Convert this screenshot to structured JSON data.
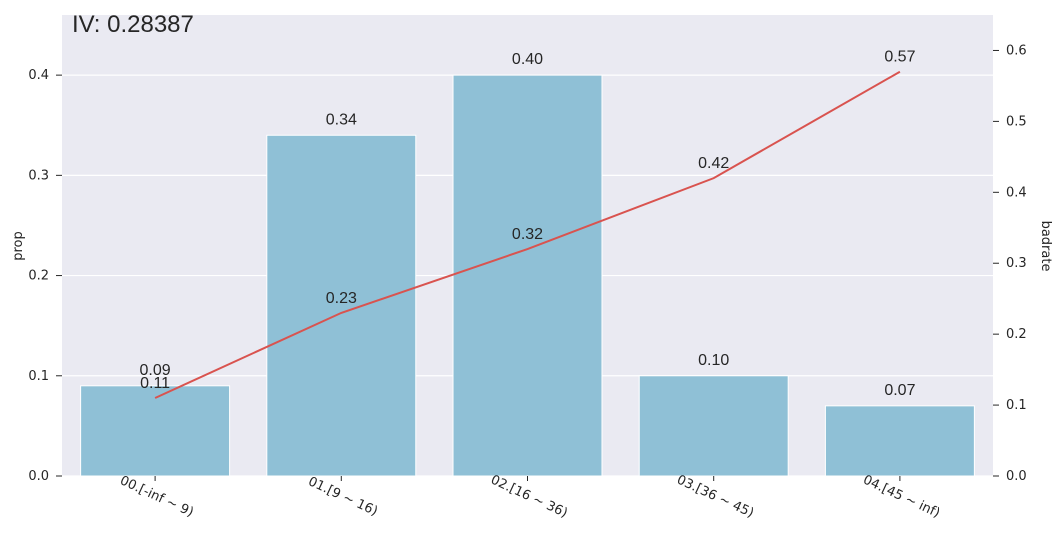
{
  "chart_data": {
    "type": "bar",
    "title": "IV: 0.28387",
    "categories": [
      "00.[-inf ~ 9)",
      "01.[9 ~ 16)",
      "02.[16 ~ 36)",
      "03.[36 ~ 45)",
      "04.[45 ~ inf)"
    ],
    "bar_values": [
      0.09,
      0.34,
      0.4,
      0.1,
      0.07
    ],
    "bar_labels": [
      "0.09",
      "0.34",
      "0.40",
      "0.10",
      "0.07"
    ],
    "line_values": [
      0.11,
      0.23,
      0.32,
      0.42,
      0.57
    ],
    "line_labels": [
      "0.11",
      "0.23",
      "0.32",
      "0.42",
      "0.57"
    ],
    "ylabel": "prop",
    "y2label": "badrate",
    "ylim": [
      0,
      0.46
    ],
    "y2lim": [
      0,
      0.65
    ],
    "yticks": [
      "0.0",
      "0.1",
      "0.2",
      "0.3",
      "0.4"
    ],
    "y2ticks": [
      "0.0",
      "0.1",
      "0.2",
      "0.3",
      "0.4",
      "0.5",
      "0.6"
    ],
    "grid": true,
    "bar_color": "#8fc0d6",
    "line_color": "#d9534f",
    "background_color": "#eaeaf2"
  }
}
